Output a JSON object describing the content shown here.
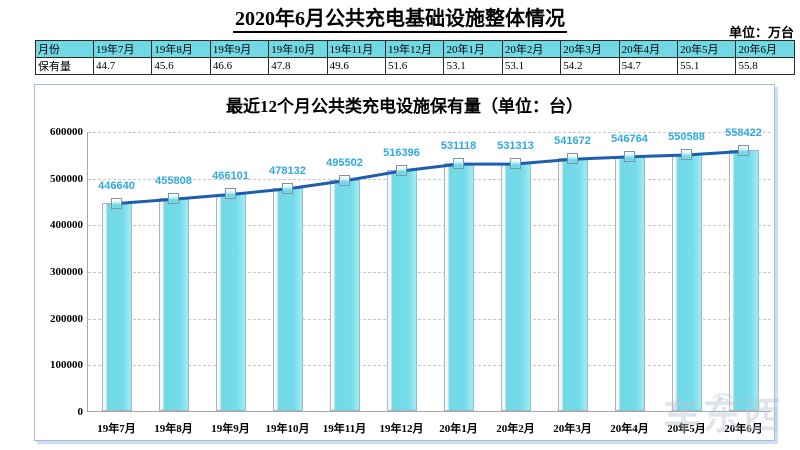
{
  "page": {
    "title": "2020年6月公共充电基础设施整体情况",
    "unit_label": "单位：万台"
  },
  "table": {
    "month_row_label": "月份",
    "value_row_label": "保有量",
    "months": [
      "19年7月",
      "19年8月",
      "19年9月",
      "19年10月",
      "19年11月",
      "19年12月",
      "20年1月",
      "20年2月",
      "20年3月",
      "20年4月",
      "20年5月",
      "20年6月"
    ],
    "values": [
      "44.7",
      "45.6",
      "46.6",
      "47.8",
      "49.6",
      "51.6",
      "53.1",
      "53.1",
      "54.2",
      "54.7",
      "55.1",
      "55.8"
    ]
  },
  "chart_data": {
    "type": "bar",
    "subtype": "bar-with-line-overlay",
    "title": "最近12个月公共类充电设施保有量（单位：台）",
    "categories": [
      "19年7月",
      "19年8月",
      "19年9月",
      "19年10月",
      "19年11月",
      "19年12月",
      "20年1月",
      "20年2月",
      "20年3月",
      "20年4月",
      "20年5月",
      "20年6月"
    ],
    "values": [
      446640,
      455808,
      466101,
      478132,
      495502,
      516396,
      531118,
      531313,
      541672,
      546764,
      550588,
      558422
    ],
    "ylim": [
      0,
      600000
    ],
    "ytick_interval": 100000,
    "yticks": [
      "0",
      "100000",
      "200000",
      "300000",
      "400000",
      "500000",
      "600000"
    ],
    "grid": "horizontal-dashed",
    "legend": "none",
    "colors": {
      "bar_fill": "#71d9e6",
      "bar_border": "#a9b4be",
      "line": "#1c5fb0",
      "marker_fill": "#7adce9",
      "data_label": "#2fa9e0",
      "gridline": "#c8c8c8",
      "table_header_bg": "#71d9e6"
    }
  },
  "watermark": {
    "text": "车东西"
  }
}
